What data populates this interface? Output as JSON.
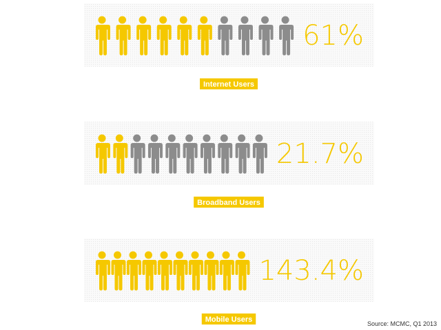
{
  "chart_data": [
    {
      "type": "pictogram",
      "title": "Internet Users",
      "values": [
        61
      ],
      "value_labels": [
        "61%"
      ],
      "color": "#f5c800",
      "empty_color": "#8c8c8c"
    },
    {
      "type": "pictogram",
      "title": "Broadband Users",
      "values": [
        21.7
      ],
      "value_labels": [
        "21.7%"
      ],
      "color": "#f5c800",
      "empty_color": "#8c8c8c"
    },
    {
      "type": "pictogram",
      "title": "Mobile Users",
      "values": [
        143.4
      ],
      "value_labels": [
        "143.4%"
      ],
      "color": "#f5c800",
      "empty_color": "#8c8c8c"
    }
  ],
  "source": "Source: MCMC, Q1 2013"
}
